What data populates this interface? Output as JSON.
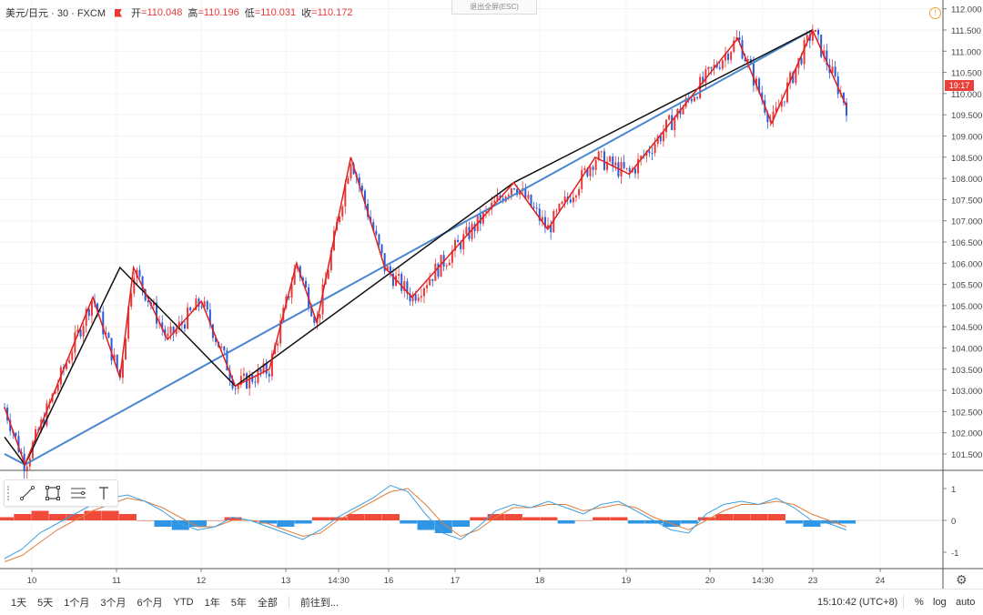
{
  "legend": {
    "symbol": "美元/日元 · 30 · FXCM",
    "open_label": "开",
    "open": "=110.048",
    "high_label": "高",
    "high": "=110.196",
    "low_label": "低",
    "low": "=110.031",
    "close_label": "收",
    "close": "=110.172"
  },
  "exit_fullscreen": "退出全屏(ESC)",
  "last_price_tag": "19:17",
  "colors": {
    "up": "#e83a3a",
    "down": "#2a5bd7",
    "trend_blue": "#4a86d0",
    "zigzag_red": "#e02020",
    "zigzag_black": "#111111",
    "macd_fast": "#3ea0e0",
    "macd_slow": "#e08040"
  },
  "price_axis": [
    "112.000",
    "111.500",
    "111.000",
    "110.500",
    "110.000",
    "109.500",
    "109.000",
    "108.500",
    "108.000",
    "107.500",
    "107.000",
    "106.500",
    "106.000",
    "105.500",
    "105.000",
    "104.500",
    "104.000",
    "103.500",
    "103.000",
    "102.500",
    "102.000",
    "101.500"
  ],
  "macd_axis": [
    "1",
    "0",
    "-1"
  ],
  "time_axis": [
    "10",
    "11",
    "12",
    "13",
    "14:30",
    "16",
    "17",
    "18",
    "19",
    "20",
    "14:30",
    "23",
    "24"
  ],
  "drawing_tools": [
    "trend-line-icon",
    "rectangle-icon",
    "fib-icon",
    "text-icon"
  ],
  "bottom_bar": {
    "ranges": [
      "1天",
      "5天",
      "1个月",
      "3个月",
      "6个月",
      "YTD",
      "1年",
      "5年",
      "全部"
    ],
    "goto": "前往到...",
    "clock": "15:10:42 (UTC+8)",
    "percent": "%",
    "log": "log",
    "auto": "auto"
  },
  "chart_data": {
    "type": "candlestick",
    "symbol": "美元/日元",
    "interval": "30",
    "ylim": [
      101.2,
      112.1
    ],
    "x_ticks": [
      "10",
      "11",
      "12",
      "13",
      "14:30",
      "16",
      "17",
      "18",
      "19",
      "20",
      "14:30",
      "23",
      "24"
    ],
    "zigzag_red": [
      [
        0,
        102.6
      ],
      [
        3,
        101.25
      ],
      [
        13,
        105.2
      ],
      [
        17,
        103.3
      ],
      [
        19,
        105.9
      ],
      [
        24,
        104.2
      ],
      [
        29,
        105.1
      ],
      [
        34,
        103.1
      ],
      [
        39,
        103.5
      ],
      [
        43,
        106.0
      ],
      [
        46,
        104.6
      ],
      [
        51,
        108.5
      ],
      [
        56,
        105.9
      ],
      [
        60,
        105.2
      ],
      [
        75,
        107.9
      ],
      [
        80,
        106.8
      ],
      [
        87,
        108.5
      ],
      [
        92,
        108.1
      ],
      [
        108,
        111.3
      ],
      [
        113,
        109.3
      ],
      [
        119,
        111.5
      ],
      [
        124,
        109.7
      ]
    ],
    "zigzag_black": [
      [
        0,
        101.9
      ],
      [
        3,
        101.25
      ],
      [
        17,
        105.9
      ],
      [
        34,
        103.1
      ],
      [
        75,
        107.9
      ],
      [
        119,
        111.5
      ]
    ],
    "trendline_blue": [
      [
        0,
        101.5
      ],
      [
        3,
        101.25
      ],
      [
        119,
        111.5
      ]
    ],
    "macd": {
      "fast": [
        -1.2,
        -0.9,
        -0.4,
        -0.1,
        0.2,
        0.5,
        0.7,
        0.8,
        0.6,
        0.3,
        -0.1,
        -0.3,
        -0.2,
        0.1,
        0.0,
        -0.2,
        -0.4,
        -0.6,
        -0.3,
        0.1,
        0.4,
        0.7,
        1.1,
        0.9,
        0.2,
        -0.4,
        -0.6,
        -0.2,
        0.3,
        0.5,
        0.4,
        0.6,
        0.4,
        0.2,
        0.5,
        0.6,
        0.3,
        0.0,
        -0.3,
        -0.4,
        0.2,
        0.5,
        0.6,
        0.5,
        0.7,
        0.4,
        0.0,
        -0.1,
        -0.3
      ],
      "slow": [
        -1.3,
        -1.1,
        -0.7,
        -0.3,
        0.0,
        0.3,
        0.5,
        0.7,
        0.6,
        0.4,
        0.1,
        -0.2,
        -0.2,
        0.0,
        0.0,
        -0.1,
        -0.3,
        -0.5,
        -0.4,
        0.0,
        0.3,
        0.6,
        0.9,
        1.0,
        0.5,
        -0.1,
        -0.5,
        -0.3,
        0.1,
        0.4,
        0.4,
        0.5,
        0.5,
        0.3,
        0.4,
        0.5,
        0.4,
        0.1,
        -0.1,
        -0.3,
        0.0,
        0.3,
        0.5,
        0.5,
        0.6,
        0.5,
        0.2,
        0.0,
        -0.2
      ],
      "hist": [
        0.1,
        0.2,
        0.3,
        0.2,
        0.2,
        0.3,
        0.3,
        0.2,
        0.0,
        -0.2,
        -0.3,
        -0.2,
        0.0,
        0.1,
        0.0,
        -0.1,
        -0.2,
        -0.1,
        0.1,
        0.1,
        0.2,
        0.2,
        0.2,
        -0.1,
        -0.3,
        -0.4,
        -0.2,
        0.1,
        0.2,
        0.2,
        0.1,
        0.1,
        -0.1,
        0.0,
        0.1,
        0.1,
        -0.1,
        -0.1,
        -0.2,
        -0.1,
        0.1,
        0.2,
        0.2,
        0.2,
        0.2,
        -0.1,
        -0.2,
        -0.1,
        -0.1
      ]
    }
  }
}
